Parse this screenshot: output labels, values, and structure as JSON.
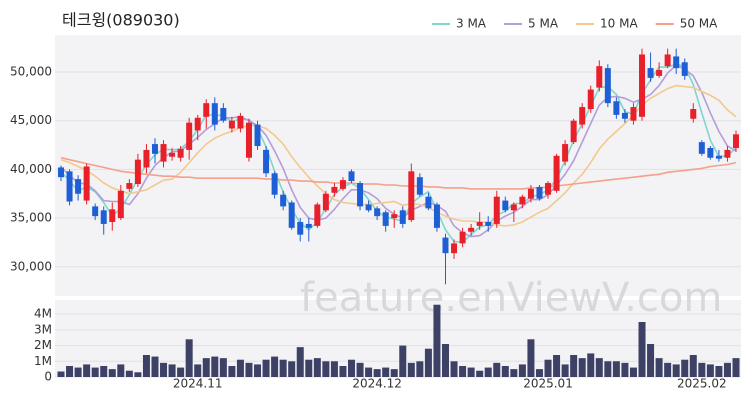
{
  "chart_data": {
    "type": "candlestick",
    "title": "테크윙(089030)",
    "watermark": "feature.enViewV.com",
    "categories": [
      null,
      null,
      null,
      null,
      null,
      null,
      null,
      null,
      null,
      null,
      null,
      null,
      null,
      null,
      null,
      null,
      "2024.11",
      null,
      null,
      null,
      null,
      null,
      null,
      null,
      null,
      null,
      null,
      null,
      null,
      null,
      null,
      null,
      null,
      null,
      null,
      null,
      null,
      "2024.12",
      null,
      null,
      null,
      null,
      null,
      null,
      null,
      null,
      null,
      null,
      null,
      null,
      null,
      null,
      null,
      null,
      null,
      null,
      null,
      "2025.01",
      null,
      null,
      null,
      null,
      null,
      null,
      null,
      null,
      null,
      null,
      null,
      null,
      null,
      null,
      null,
      null,
      null,
      "2025.02",
      null,
      null,
      null,
      null
    ],
    "open": [
      40200,
      39800,
      39000,
      36800,
      36200,
      35800,
      34600,
      35000,
      38000,
      38500,
      40200,
      42600,
      40800,
      41300,
      41200,
      42000,
      44000,
      45400,
      46800,
      46300,
      44200,
      44200,
      41200,
      44600,
      42000,
      39600,
      37400,
      36600,
      34600,
      34400,
      34200,
      35800,
      37600,
      38000,
      39800,
      38600,
      36400,
      36000,
      35600,
      35000,
      35800,
      34800,
      39200,
      37200,
      36400,
      33000,
      31400,
      32400,
      33600,
      34200,
      34600,
      34400,
      36800,
      35800,
      36400,
      37000,
      38200,
      37400,
      37800,
      40800,
      42800,
      44600,
      46200,
      48400,
      50400,
      47000,
      45800,
      45000,
      45400,
      50400,
      49600,
      50600,
      51600,
      51000,
      45200,
      42800,
      42200,
      41400,
      41200,
      42200
    ],
    "high": [
      40400,
      40000,
      39400,
      40600,
      36500,
      36200,
      36600,
      38400,
      39000,
      41600,
      42600,
      43200,
      43000,
      42200,
      42400,
      45300,
      45600,
      47200,
      47400,
      46800,
      45400,
      45800,
      45200,
      45000,
      42400,
      39800,
      37800,
      36800,
      35000,
      35000,
      36600,
      37800,
      38600,
      39200,
      40000,
      38800,
      36800,
      36200,
      35800,
      35800,
      36200,
      40600,
      39600,
      37600,
      36600,
      33400,
      32800,
      34000,
      34400,
      35600,
      35200,
      37800,
      37200,
      36600,
      37400,
      38400,
      38400,
      38800,
      41600,
      43000,
      45200,
      46800,
      48600,
      51200,
      50800,
      47400,
      46200,
      46800,
      52400,
      52000,
      51000,
      52400,
      52400,
      51400,
      46800,
      43000,
      42400,
      42000,
      42400,
      44000
    ],
    "low": [
      38800,
      36300,
      36800,
      36400,
      34800,
      33300,
      33700,
      34800,
      37700,
      38200,
      39600,
      40600,
      40200,
      40900,
      40800,
      41000,
      43000,
      44200,
      44000,
      44800,
      43800,
      43800,
      40800,
      42000,
      39200,
      37000,
      35800,
      33800,
      32600,
      32600,
      34000,
      35600,
      37200,
      37800,
      38600,
      35800,
      35600,
      34800,
      33600,
      34000,
      34000,
      34600,
      37200,
      35800,
      33600,
      28200,
      30800,
      32000,
      33200,
      33800,
      33600,
      34000,
      35600,
      34600,
      36000,
      36600,
      36800,
      37000,
      37600,
      40400,
      42600,
      44200,
      45800,
      48000,
      46400,
      45200,
      44800,
      44600,
      45000,
      49000,
      49400,
      50400,
      49800,
      49200,
      44800,
      41400,
      41000,
      40800,
      40800,
      41800
    ],
    "close": [
      39200,
      36700,
      37500,
      40300,
      35200,
      34400,
      35900,
      37800,
      38600,
      41000,
      42000,
      41600,
      42600,
      41700,
      42100,
      44800,
      45300,
      46800,
      44600,
      45000,
      45000,
      45500,
      44800,
      42400,
      39600,
      37400,
      36200,
      34000,
      33300,
      34000,
      36400,
      37500,
      38200,
      38900,
      38800,
      36200,
      35800,
      35200,
      34200,
      35400,
      34400,
      39800,
      37400,
      36000,
      34000,
      31400,
      32400,
      33600,
      34000,
      34600,
      34200,
      37200,
      35800,
      36400,
      37200,
      38000,
      37000,
      38600,
      41400,
      42600,
      45000,
      46400,
      48200,
      50600,
      46800,
      45600,
      45200,
      46400,
      51800,
      49400,
      50200,
      51800,
      50400,
      49600,
      46200,
      41600,
      41200,
      41100,
      42000,
      43600
    ],
    "volume": [
      350000,
      700000,
      600000,
      800000,
      600000,
      700000,
      500000,
      800000,
      400000,
      300000,
      1400000,
      1300000,
      900000,
      800000,
      600000,
      2400000,
      800000,
      1200000,
      1300000,
      1200000,
      700000,
      1100000,
      900000,
      800000,
      1100000,
      1300000,
      1100000,
      1000000,
      1900000,
      1100000,
      1200000,
      1000000,
      1000000,
      700000,
      1100000,
      900000,
      600000,
      500000,
      600000,
      500000,
      2000000,
      900000,
      1000000,
      1800000,
      4600000,
      2100000,
      1000000,
      700000,
      600000,
      400000,
      600000,
      900000,
      700000,
      500000,
      800000,
      2400000,
      500000,
      1100000,
      1400000,
      800000,
      1400000,
      1200000,
      1500000,
      1200000,
      1000000,
      1000000,
      900000,
      600000,
      3500000,
      2100000,
      1200000,
      900000,
      800000,
      1100000,
      1400000,
      900000,
      800000,
      700000,
      900000,
      1200000
    ],
    "up_color": "#e8202a",
    "down_color": "#1f5fd6",
    "volume_color": "#3d4165",
    "series": [
      {
        "name": "3 MA",
        "color": "#7fd6cf",
        "values": [
          39800,
          38800,
          37800,
          38200,
          37700,
          36600,
          35200,
          36000,
          37400,
          39100,
          40500,
          41500,
          42100,
          42000,
          42100,
          42900,
          44100,
          45600,
          45600,
          45500,
          44900,
          45200,
          45100,
          44200,
          42300,
          39800,
          37700,
          35900,
          34500,
          33800,
          34600,
          36000,
          37400,
          38200,
          38600,
          38000,
          36900,
          35700,
          35100,
          34900,
          34700,
          36500,
          37200,
          37700,
          35800,
          33800,
          32600,
          32500,
          33300,
          34100,
          34300,
          35300,
          35700,
          36500,
          36500,
          37200,
          37400,
          37900,
          39000,
          40900,
          43000,
          44700,
          46500,
          48400,
          48500,
          47700,
          45900,
          45700,
          47800,
          49200,
          50500,
          50500,
          50800,
          50600,
          48700,
          45800,
          43000,
          41300,
          41400,
          42200
        ]
      },
      {
        "name": "5 MA",
        "color": "#b39ddb",
        "values": [
          40200,
          39400,
          38600,
          38500,
          37800,
          36800,
          36700,
          36700,
          36400,
          37500,
          39100,
          40400,
          41200,
          41800,
          41900,
          42600,
          43300,
          44100,
          44700,
          45300,
          45300,
          45400,
          45000,
          44500,
          43500,
          41900,
          40100,
          37900,
          36100,
          35000,
          34800,
          35000,
          35900,
          37000,
          37900,
          37900,
          37600,
          37000,
          36000,
          35400,
          35000,
          35800,
          36200,
          36600,
          36300,
          35700,
          34200,
          33500,
          33100,
          33200,
          33800,
          34700,
          35200,
          35600,
          36200,
          36900,
          36900,
          37400,
          38400,
          39500,
          40900,
          42800,
          44700,
          46600,
          47400,
          47500,
          47300,
          46900,
          47200,
          47700,
          48600,
          49900,
          50700,
          50300,
          49600,
          47900,
          45800,
          43900,
          42400,
          41900
        ]
      },
      {
        "name": "10 MA",
        "color": "#f3c98b",
        "values": [
          41000,
          40700,
          40300,
          39900,
          39300,
          38600,
          38100,
          37800,
          37500,
          37700,
          37900,
          38400,
          38900,
          39000,
          39700,
          40700,
          41700,
          42600,
          43200,
          43600,
          43900,
          44300,
          44500,
          44500,
          44200,
          43500,
          42600,
          41300,
          40200,
          39200,
          38300,
          37500,
          36900,
          36600,
          36500,
          36400,
          36400,
          36500,
          36600,
          36700,
          36300,
          36500,
          36400,
          36100,
          35600,
          35200,
          34900,
          34700,
          34700,
          34600,
          34600,
          34300,
          34200,
          34300,
          34600,
          35100,
          35600,
          36000,
          36800,
          37600,
          38600,
          39500,
          40700,
          42100,
          43100,
          43900,
          44700,
          45600,
          46600,
          47300,
          47800,
          48300,
          48600,
          48500,
          48400,
          48000,
          47600,
          47100,
          46100,
          45400
        ]
      },
      {
        "name": "50 MA",
        "color": "#f4a08a",
        "values": [
          41200,
          41000,
          40800,
          40600,
          40400,
          40200,
          40000,
          39800,
          39700,
          39600,
          39500,
          39400,
          39300,
          39300,
          39200,
          39200,
          39100,
          39100,
          39100,
          39100,
          39100,
          39100,
          39100,
          39100,
          39000,
          39000,
          38900,
          38900,
          38800,
          38800,
          38700,
          38700,
          38600,
          38600,
          38600,
          38500,
          38500,
          38500,
          38400,
          38400,
          38300,
          38300,
          38300,
          38200,
          38200,
          38100,
          38100,
          38100,
          38000,
          38000,
          38000,
          38000,
          38000,
          38000,
          38000,
          38100,
          38100,
          38200,
          38300,
          38400,
          38500,
          38600,
          38700,
          38800,
          38900,
          39000,
          39100,
          39200,
          39300,
          39400,
          39500,
          39700,
          39800,
          39900,
          40000,
          40100,
          40300,
          40400,
          40500,
          40700
        ]
      }
    ],
    "ylim": [
      27000,
      53800
    ],
    "yticks": [
      {
        "value": 30000,
        "label": "30,000"
      },
      {
        "value": 35000,
        "label": "35,000"
      },
      {
        "value": 40000,
        "label": "40,000"
      },
      {
        "value": 45000,
        "label": "45,000"
      },
      {
        "value": 50000,
        "label": "50,000"
      }
    ],
    "volume_ylim": [
      0,
      4900000
    ],
    "volume_yticks": [
      0,
      {
        "value": 1000000,
        "label": "1M"
      },
      {
        "value": 2000000,
        "label": "2M"
      },
      {
        "value": 3000000,
        "label": "3M"
      },
      {
        "value": 4000000,
        "label": "4M"
      }
    ]
  }
}
